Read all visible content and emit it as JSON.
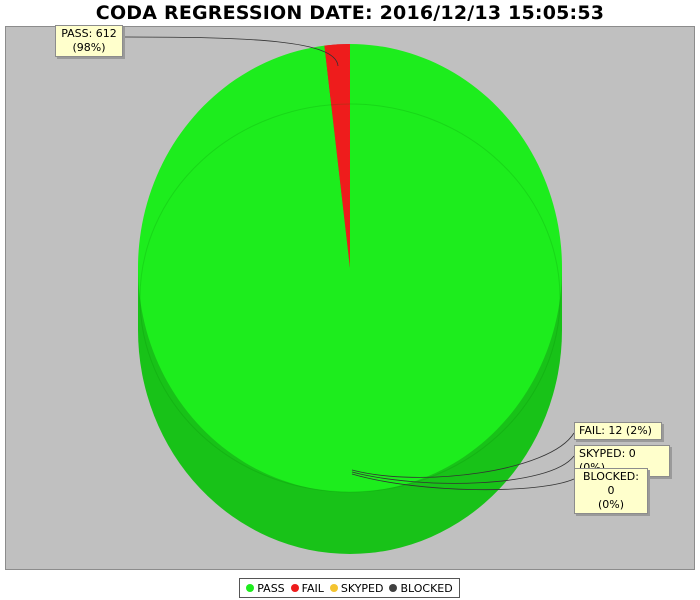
{
  "chart_data": {
    "type": "pie",
    "title": "CODA REGRESSION DATE: 2016/12/13 15:05:53",
    "categories": [
      "PASS",
      "FAIL",
      "SKYPED",
      "BLOCKED"
    ],
    "values": [
      612,
      12,
      0,
      0
    ],
    "percent_labels": [
      "(98%)",
      "(2%)",
      "(0%)",
      "(0%)"
    ],
    "slice_labels": [
      "PASS: 612",
      "FAIL: 12 (2%)",
      "SKYPED: 0 (0%)",
      "BLOCKED: 0"
    ],
    "colors": [
      "#1ded1d",
      "#ee1c1c",
      "#f4c430",
      "#404040"
    ],
    "pie_3d": true,
    "legend_position": "bottom",
    "legend": [
      "PASS",
      "FAIL",
      "SKYPED",
      "BLOCKED"
    ]
  }
}
